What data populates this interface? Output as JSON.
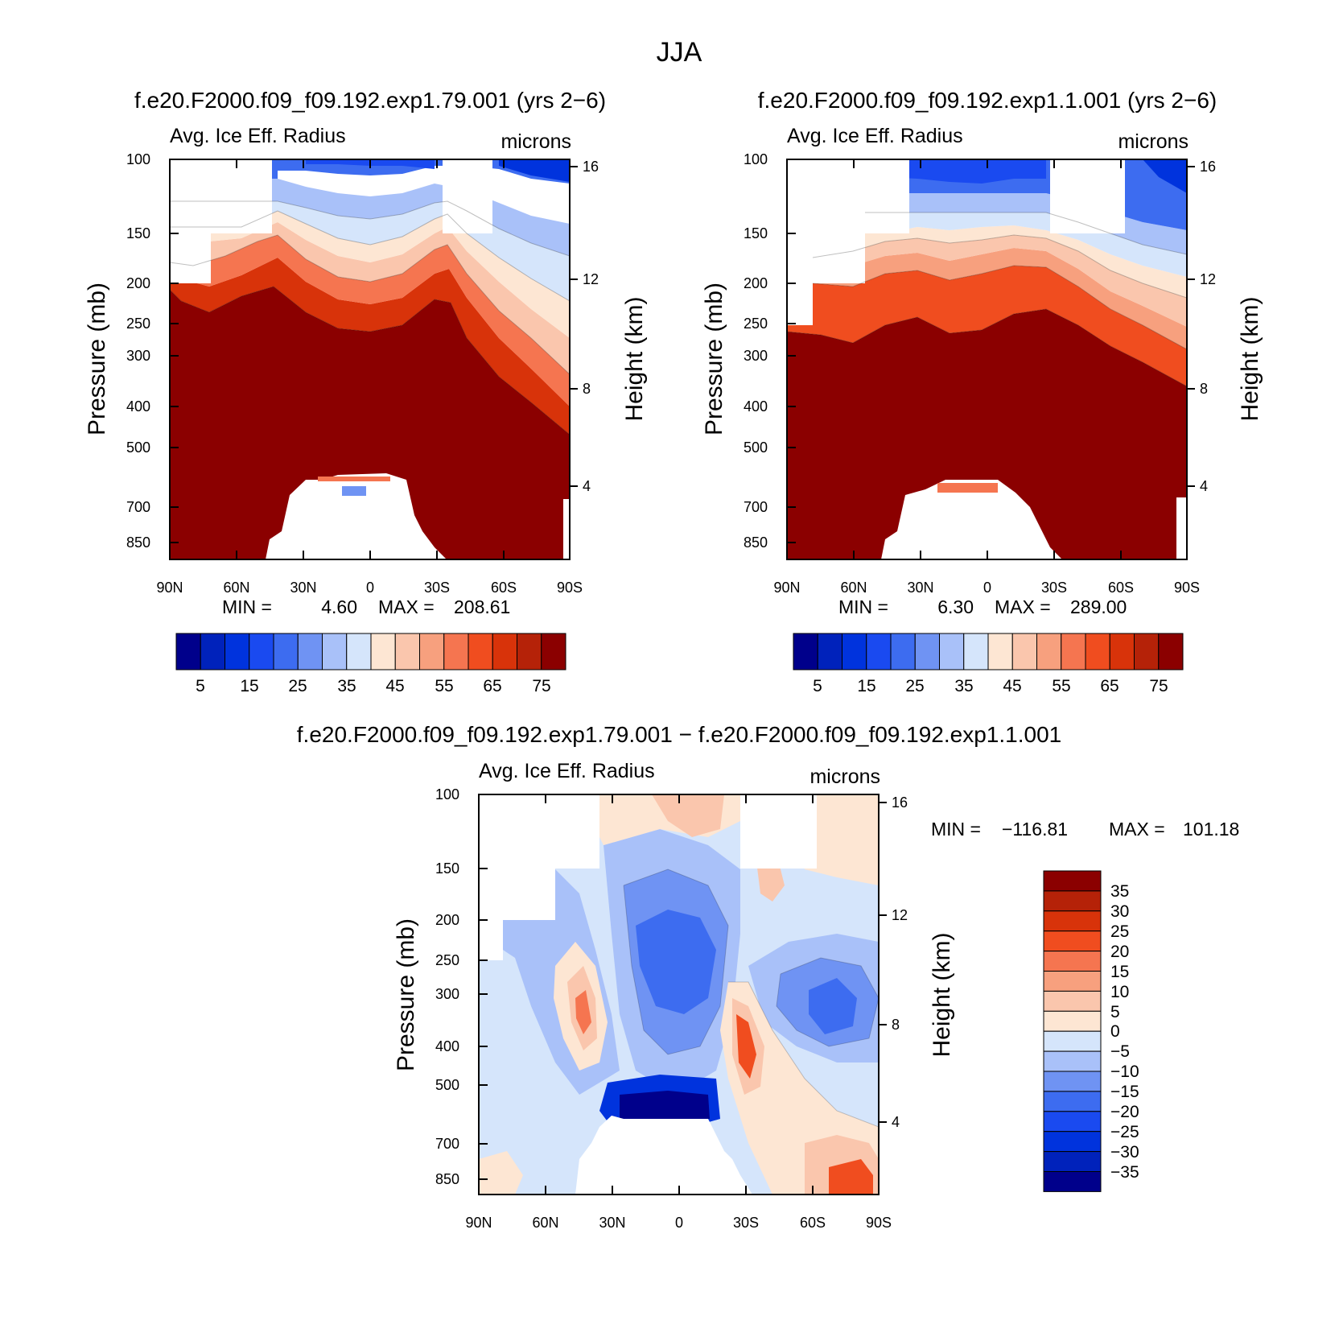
{
  "colors": {
    "cmap": [
      "#00008b",
      "#0022bb",
      "#0033dd",
      "#1a4af0",
      "#3d6cf0",
      "#6f93f3",
      "#a9c1f9",
      "#d5e5fb",
      "#fde6d3",
      "#fac6ad",
      "#f7a07e",
      "#f57550",
      "#f04d1f",
      "#d8330a",
      "#b52208",
      "#8b0000"
    ],
    "text": "#000000",
    "missing": "#ffffff"
  },
  "chart_data": {
    "title": "JJA",
    "panels": [
      {
        "id": "left",
        "type": "contour",
        "run_title": "f.e20.F2000.f09_f09.192.exp1.79.001 (yrs 2−6)",
        "variable": "Avg. Ice Eff. Radius",
        "units": "microns",
        "xlabel": "",
        "ylabel": "Pressure (mb)",
        "y2label": "Height (km)",
        "x_ticks": [
          "90N",
          "60N",
          "30N",
          "0",
          "30S",
          "60S",
          "90S"
        ],
        "y_ticks": [
          "100",
          "150",
          "200",
          "250",
          "300",
          "400",
          "500",
          "700",
          "850"
        ],
        "y2_ticks": [
          "16",
          "12",
          "8",
          "4"
        ],
        "min_label": "MIN =",
        "min_value": "4.60",
        "max_label": "MAX =",
        "max_value": "208.61",
        "colorbar_labels": [
          "5",
          "15",
          "25",
          "35",
          "45",
          "55",
          "65",
          "75"
        ],
        "colorbar_levels": [
          5,
          10,
          15,
          20,
          25,
          30,
          35,
          40,
          45,
          50,
          55,
          60,
          65,
          70,
          75
        ]
      },
      {
        "id": "right",
        "type": "contour",
        "run_title": "f.e20.F2000.f09_f09.192.exp1.1.001 (yrs 2−6)",
        "variable": "Avg. Ice Eff. Radius",
        "units": "microns",
        "xlabel": "",
        "ylabel": "Pressure (mb)",
        "y2label": "Height (km)",
        "x_ticks": [
          "90N",
          "60N",
          "30N",
          "0",
          "30S",
          "60S",
          "90S"
        ],
        "y_ticks": [
          "100",
          "150",
          "200",
          "250",
          "300",
          "400",
          "500",
          "700",
          "850"
        ],
        "y2_ticks": [
          "16",
          "12",
          "8",
          "4"
        ],
        "min_label": "MIN =",
        "min_value": "6.30",
        "max_label": "MAX =",
        "max_value": "289.00",
        "colorbar_labels": [
          "5",
          "15",
          "25",
          "35",
          "45",
          "55",
          "65",
          "75"
        ],
        "colorbar_levels": [
          5,
          10,
          15,
          20,
          25,
          30,
          35,
          40,
          45,
          50,
          55,
          60,
          65,
          70,
          75
        ]
      },
      {
        "id": "diff",
        "type": "contour",
        "run_title": "f.e20.F2000.f09_f09.192.exp1.79.001 − f.e20.F2000.f09_f09.192.exp1.1.001",
        "variable": "Avg. Ice Eff. Radius",
        "units": "microns",
        "xlabel": "",
        "ylabel": "Pressure (mb)",
        "y2label": "Height (km)",
        "x_ticks": [
          "90N",
          "60N",
          "30N",
          "0",
          "30S",
          "60S",
          "90S"
        ],
        "y_ticks": [
          "100",
          "150",
          "200",
          "250",
          "300",
          "400",
          "500",
          "700",
          "850"
        ],
        "y2_ticks": [
          "16",
          "12",
          "8",
          "4"
        ],
        "min_label": "MIN =",
        "min_value": "−116.81",
        "max_label": "MAX =",
        "max_value": "101.18",
        "colorbar_labels": [
          "35",
          "30",
          "25",
          "20",
          "15",
          "10",
          "5",
          "0",
          "−5",
          "−10",
          "−15",
          "−20",
          "−25",
          "−30",
          "−35"
        ],
        "colorbar_levels": [
          -35,
          -30,
          -25,
          -20,
          -15,
          -10,
          -5,
          0,
          5,
          10,
          15,
          20,
          25,
          30,
          35
        ]
      }
    ]
  }
}
